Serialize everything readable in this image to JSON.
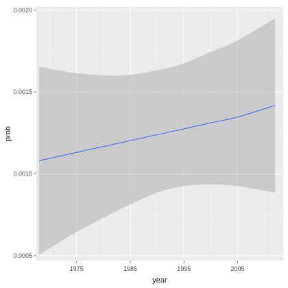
{
  "chart_data": {
    "type": "line",
    "title": "",
    "xlabel": "year",
    "ylabel": "prob",
    "xlim": [
      1967.5,
      2013.5
    ],
    "ylim": [
      0.00047,
      0.00202
    ],
    "x_ticks": [
      1975,
      1985,
      1995,
      2005
    ],
    "y_ticks": [
      0.0005,
      0.001,
      0.0015,
      0.002
    ],
    "x_tick_labels": [
      "1975",
      "1985",
      "1995",
      "2005"
    ],
    "y_tick_labels": [
      "0.0005",
      "0.0010",
      "0.0015",
      "0.0020"
    ],
    "grid": true,
    "series": [
      {
        "x": [
          1968,
          1975,
          1981,
          1985,
          1990,
          1995,
          2000,
          2005,
          2012
        ],
        "y": [
          0.00108,
          0.001131,
          0.001174,
          0.001203,
          0.001239,
          0.001275,
          0.001311,
          0.001347,
          0.001418
        ],
        "ci_lower": [
          0.000505,
          0.000645,
          0.000748,
          0.000813,
          0.000885,
          0.000925,
          0.000935,
          0.000925,
          0.000885
        ],
        "ci_upper": [
          0.001655,
          0.001614,
          0.001601,
          0.001605,
          0.001632,
          0.001675,
          0.001745,
          0.001815,
          0.00195
        ]
      }
    ],
    "colors": {
      "panel_background": "#ebebeb",
      "grid": "#ffffff",
      "line": "#3366ff",
      "ribbon": "#999999"
    }
  }
}
